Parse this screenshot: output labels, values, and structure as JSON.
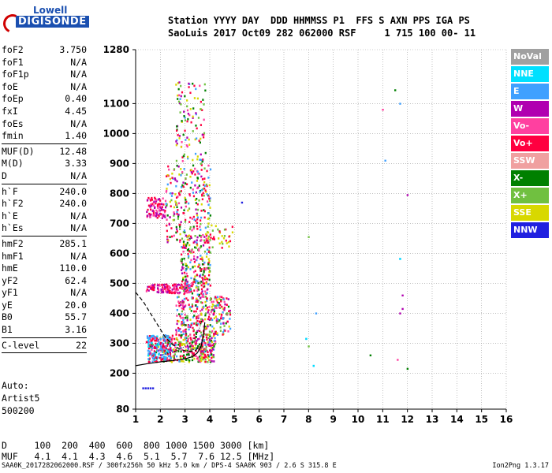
{
  "logo": {
    "top": "Lowell",
    "bottom": "DIGISONDE"
  },
  "header": {
    "line1": "Station YYYY DAY  DDD HHMMSS P1  FFS S AXN PPS IGA PS",
    "line2": "SaoLuis 2017 Oct09 282 062000 RSF     1 715 100 00- 11"
  },
  "params": [
    {
      "name": "foF2",
      "value": "3.750"
    },
    {
      "name": "foF1",
      "value": "N/A"
    },
    {
      "name": "foF1p",
      "value": "N/A"
    },
    {
      "name": "foE",
      "value": "N/A"
    },
    {
      "name": "foEp",
      "value": "0.40"
    },
    {
      "name": "fxI",
      "value": "4.45"
    },
    {
      "name": "foEs",
      "value": "N/A"
    },
    {
      "name": "fmin",
      "value": "1.40"
    },
    {
      "sep": true
    },
    {
      "name": "MUF(D)",
      "value": "12.48"
    },
    {
      "name": "M(D)",
      "value": "3.33"
    },
    {
      "name": "D",
      "value": "N/A"
    },
    {
      "sep": true
    },
    {
      "name": "h`F",
      "value": "240.0"
    },
    {
      "name": "h`F2",
      "value": "240.0"
    },
    {
      "name": "h`E",
      "value": "N/A"
    },
    {
      "name": "h`Es",
      "value": "N/A"
    },
    {
      "sep": true
    },
    {
      "name": "hmF2",
      "value": "285.1"
    },
    {
      "name": "hmF1",
      "value": "N/A"
    },
    {
      "name": "hmE",
      "value": "110.0"
    },
    {
      "name": "yF2",
      "value": "62.4"
    },
    {
      "name": "yF1",
      "value": "N/A"
    },
    {
      "name": "yE",
      "value": "20.0"
    },
    {
      "name": "B0",
      "value": "55.7"
    },
    {
      "name": "B1",
      "value": "3.16"
    },
    {
      "sep": true
    },
    {
      "name": "C-level",
      "value": "22"
    },
    {
      "sep": true
    }
  ],
  "auto": {
    "line1": "Auto:",
    "line2": "Artist5",
    "line3": "500200"
  },
  "legend": [
    {
      "label": "NoVal",
      "color": "#a0a0a0"
    },
    {
      "label": "NNE",
      "color": "#00e0ff"
    },
    {
      "label": "E",
      "color": "#3fa0ff"
    },
    {
      "label": "W",
      "color": "#b000b0"
    },
    {
      "label": "Vo-",
      "color": "#ff40a0"
    },
    {
      "label": "Vo+",
      "color": "#ff0040"
    },
    {
      "label": "SSW",
      "color": "#f0a0a0"
    },
    {
      "label": "X-",
      "color": "#008000"
    },
    {
      "label": "X+",
      "color": "#70c040"
    },
    {
      "label": "SSE",
      "color": "#d8d800"
    },
    {
      "label": "NNW",
      "color": "#2020e0"
    }
  ],
  "dtable": {
    "line1": "D     100  200  400  600  800 1000 1500 3000 [km]",
    "line2": "MUF   4.1  4.1  4.3  4.6  5.1  5.7  7.6 12.5 [MHz]"
  },
  "footer": {
    "text": "SAA0K_2017282062000.RSF / 300fx256h 50 kHz 5.0 km / DPS-4 SAA0K 903 / 2.6 S 315.8 E",
    "version": "Ion2Png 1.3.17"
  },
  "chart_data": {
    "type": "scatter",
    "xlim": [
      1,
      16
    ],
    "ylim": [
      80,
      1280
    ],
    "xticks": [
      "1",
      "2",
      "3",
      "4",
      "5",
      "6",
      "7",
      "8",
      "9",
      "10",
      "11",
      "12",
      "13",
      "14",
      "15",
      "16"
    ],
    "yticks": [
      "80",
      "200",
      "300",
      "400",
      "500",
      "600",
      "700",
      "800",
      "900",
      "1000",
      "1100",
      "1280"
    ],
    "series": [
      {
        "name": "X+",
        "color": "#70c040",
        "points": [
          [
            8.0,
            655
          ],
          [
            8.0,
            290
          ]
        ]
      },
      {
        "name": "E",
        "color": "#3fa0ff",
        "points": [
          [
            8.3,
            400
          ],
          [
            7.9,
            315
          ],
          [
            8.2,
            225
          ],
          [
            11.7,
            1100
          ],
          [
            11.1,
            910
          ],
          [
            11.7,
            582
          ]
        ]
      },
      {
        "name": "NNE",
        "color": "#00e0ff",
        "points": [
          [
            7.9,
            315
          ],
          [
            8.2,
            225
          ],
          [
            11.7,
            582
          ]
        ]
      },
      {
        "name": "X-",
        "color": "#008000",
        "points": [
          [
            10.5,
            260
          ],
          [
            12.0,
            215
          ],
          [
            11.5,
            1145
          ]
        ]
      },
      {
        "name": "W",
        "color": "#b000b0",
        "points": [
          [
            12.0,
            795
          ],
          [
            11.8,
            460
          ],
          [
            11.8,
            415
          ],
          [
            11.7,
            400
          ]
        ]
      },
      {
        "name": "Vo-",
        "color": "#ff40a0",
        "points": [
          [
            11.6,
            245
          ],
          [
            11.0,
            1080
          ]
        ]
      },
      {
        "name": "NNW",
        "color": "#2020e0",
        "points": [
          [
            1.3,
            150
          ],
          [
            1.4,
            150
          ],
          [
            1.5,
            150
          ],
          [
            1.6,
            150
          ],
          [
            1.7,
            150
          ],
          [
            5.3,
            770
          ]
        ]
      }
    ]
  }
}
